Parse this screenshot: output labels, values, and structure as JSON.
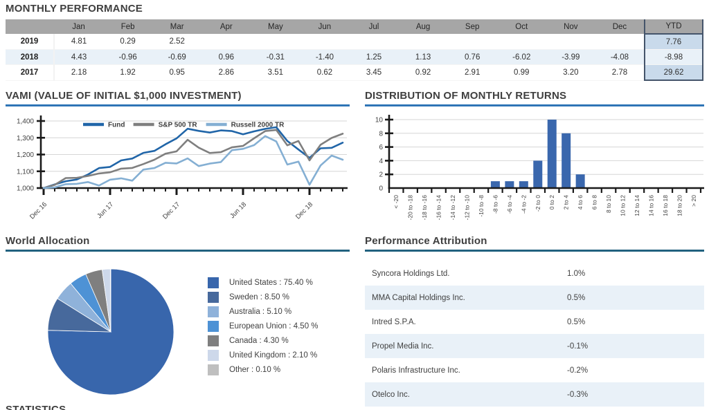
{
  "theme": {
    "rule_blue": "#2E75B6",
    "rule_dark": "#21617F",
    "table_header_bg": "#A6A6A6",
    "row_highlight_bg": "#E9F1F8",
    "ytd_bg": "#C9DAEB",
    "ytd_border": "#44546A",
    "axis_color": "#1a1a1a",
    "grid_color": "#D6D6D6",
    "tick_text_color": "#3f3f3f"
  },
  "chart_data": [
    {
      "id": "monthly-performance",
      "type": "table",
      "title": "MONTHLY PERFORMANCE",
      "columns": [
        "",
        "Jan",
        "Feb",
        "Mar",
        "Apr",
        "May",
        "Jun",
        "Jul",
        "Aug",
        "Sep",
        "Oct",
        "Nov",
        "Dec",
        "YTD"
      ],
      "rows": [
        {
          "year": "2019",
          "values": [
            "4.81",
            "0.29",
            "2.52",
            "",
            "",
            "",
            "",
            "",
            "",
            "",
            "",
            ""
          ],
          "ytd": "7.76",
          "highlight": false
        },
        {
          "year": "2018",
          "values": [
            "4.43",
            "-0.96",
            "-0.69",
            "0.96",
            "-0.31",
            "-1.40",
            "1.25",
            "1.13",
            "0.76",
            "-6.02",
            "-3.99",
            "-4.08"
          ],
          "ytd": "-8.98",
          "highlight": true
        },
        {
          "year": "2017",
          "values": [
            "2.18",
            "1.92",
            "0.95",
            "2.86",
            "3.51",
            "0.62",
            "3.45",
            "0.92",
            "2.91",
            "0.99",
            "3.20",
            "2.78"
          ],
          "ytd": "29.62",
          "highlight": false
        }
      ]
    },
    {
      "id": "vami",
      "type": "line",
      "title": "VAMI (VALUE OF INITIAL $1,000 INVESTMENT)",
      "ylim": [
        1000,
        1400
      ],
      "yticks": [
        1000,
        1100,
        1200,
        1300,
        1400
      ],
      "ytick_labels": [
        "1,000",
        "1,100",
        "1,200",
        "1,300",
        "1,400"
      ],
      "x_major_tick_indices": [
        0,
        6,
        12,
        18,
        24
      ],
      "x_major_tick_labels": [
        "Dec 16",
        "Jun 17",
        "Dec 17",
        "Jun 18",
        "Dec 18"
      ],
      "grid": true,
      "legend_position": "top-center",
      "series": [
        {
          "name": "Fund",
          "color": "#2065A8",
          "values": [
            1000,
            1022,
            1041,
            1051,
            1081,
            1119,
            1126,
            1165,
            1176,
            1210,
            1222,
            1261,
            1296,
            1354,
            1341,
            1331,
            1344,
            1340,
            1321,
            1338,
            1353,
            1363,
            1281,
            1230,
            1180,
            1237,
            1240,
            1271
          ]
        },
        {
          "name": "S&P 500 TR",
          "color": "#7F7F7F",
          "values": [
            1000,
            1019,
            1060,
            1061,
            1072,
            1087,
            1094,
            1116,
            1120,
            1143,
            1169,
            1205,
            1219,
            1288,
            1241,
            1209,
            1214,
            1243,
            1251,
            1297,
            1340,
            1347,
            1255,
            1281,
            1165,
            1258,
            1299,
            1324
          ]
        },
        {
          "name": "Russell 2000 TR",
          "color": "#84AFD3",
          "values": [
            1000,
            1004,
            1023,
            1025,
            1036,
            1015,
            1050,
            1058,
            1044,
            1110,
            1119,
            1151,
            1147,
            1177,
            1131,
            1146,
            1155,
            1226,
            1234,
            1256,
            1310,
            1278,
            1140,
            1158,
            1020,
            1135,
            1194,
            1169
          ]
        }
      ]
    },
    {
      "id": "distribution",
      "type": "bar",
      "title": "DISTRIBUTION OF MONTHLY RETURNS",
      "categories": [
        "< -20",
        "-20 to -18",
        "-18 to -16",
        "-16 to -14",
        "-14 to -12",
        "-12 to -10",
        "-10 to -8",
        "-8 to -6",
        "-6 to -4",
        "-4 to -2",
        "-2 to 0",
        "0 to 2",
        "2 to 4",
        "4 to 6",
        "6 to 8",
        "8 to 10",
        "10 to 12",
        "12 to 14",
        "14 to 16",
        "16 to 18",
        "18 to 20",
        "> 20"
      ],
      "values": [
        0,
        0,
        0,
        0,
        0,
        0,
        0,
        1,
        1,
        1,
        4,
        10,
        8,
        2,
        0,
        0,
        0,
        0,
        0,
        0,
        0,
        0
      ],
      "ylim": [
        0,
        10
      ],
      "yticks": [
        0,
        2,
        4,
        6,
        8,
        10
      ],
      "bar_color": "#3A67AD",
      "grid": true
    },
    {
      "id": "world-allocation",
      "type": "pie",
      "title": "World Allocation",
      "legend_position": "right",
      "slices": [
        {
          "label": "United States",
          "value": 75.4,
          "color": "#3866AC",
          "legend_label": "United States : 75.40 %"
        },
        {
          "label": "Sweden",
          "value": 8.5,
          "color": "#47699C",
          "legend_label": "Sweden : 8.50 %"
        },
        {
          "label": "Australia",
          "value": 5.1,
          "color": "#8FB2DA",
          "legend_label": "Australia : 5.10 %"
        },
        {
          "label": "European Union",
          "value": 4.5,
          "color": "#4E92D5",
          "legend_label": "European Union : 4.50 %"
        },
        {
          "label": "Canada",
          "value": 4.3,
          "color": "#7F7F7F",
          "legend_label": "Canada : 4.30 %"
        },
        {
          "label": "United Kingdom",
          "value": 2.1,
          "color": "#CDD8EA",
          "legend_label": "United Kingdom : 2.10 %"
        },
        {
          "label": "Other",
          "value": 0.1,
          "color": "#BFBFBF",
          "legend_label": "Other : 0.10 %"
        }
      ]
    }
  ],
  "performance_attribution": {
    "title": "Performance Attribution",
    "rows": [
      {
        "name": "Syncora Holdings Ltd.",
        "value": "1.0%"
      },
      {
        "name": "MMA Capital Holdings Inc.",
        "value": "0.5%"
      },
      {
        "name": "Intred S.P.A.",
        "value": "0.5%"
      },
      {
        "name": "Propel Media Inc.",
        "value": "-0.1%"
      },
      {
        "name": "Polaris Infrastructure Inc.",
        "value": "-0.2%"
      },
      {
        "name": "Otelco Inc.",
        "value": "-0.3%"
      }
    ]
  },
  "statistics": {
    "title": "STATISTICS"
  }
}
